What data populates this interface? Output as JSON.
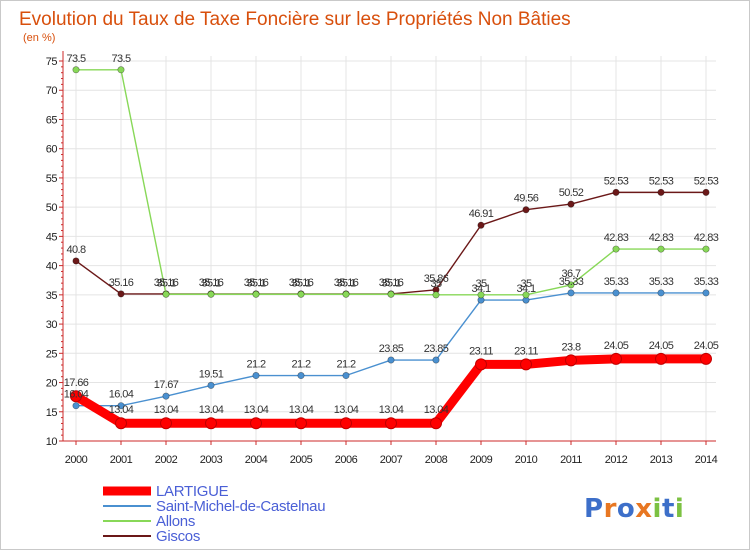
{
  "chart_data": {
    "type": "line",
    "title": "Evolution du Taux de Taxe Foncière sur les Propriétés Non Bâties",
    "ylabel": "(en %)",
    "xlabel": "",
    "ylim": [
      10,
      75
    ],
    "yticks": [
      10,
      15,
      20,
      25,
      30,
      35,
      40,
      45,
      50,
      55,
      60,
      65,
      70,
      75
    ],
    "grid": true,
    "legend_position": "bottom-left",
    "categories": [
      "2000",
      "2001",
      "2002",
      "2003",
      "2004",
      "2005",
      "2006",
      "2007",
      "2008",
      "2009",
      "2010",
      "2011",
      "2012",
      "2013",
      "2014"
    ],
    "series": [
      {
        "name": "LARTIGUE",
        "color": "#ff0000",
        "values": [
          17.66,
          13.04,
          13.04,
          13.04,
          13.04,
          13.04,
          13.04,
          13.04,
          13.04,
          23.11,
          23.11,
          23.8,
          24.05,
          24.05,
          24.05
        ],
        "labels": [
          "17.66",
          "13.04",
          "13.04",
          "13.04",
          "13.04",
          "13.04",
          "13.04",
          "13.04",
          "13.04",
          "23.11",
          "23.11",
          "23.8",
          "24.05",
          "24.05",
          "24.05"
        ]
      },
      {
        "name": "Saint-Michel-de-Castelnau",
        "color": "#4a90d0",
        "values": [
          16.04,
          16.04,
          17.67,
          19.51,
          21.2,
          21.2,
          21.2,
          23.85,
          23.85,
          34.1,
          34.1,
          35.33,
          35.33,
          35.33,
          35.33
        ],
        "labels": [
          "16.04",
          "16.04",
          "17.67",
          "19.51",
          "21.2",
          "21.2",
          "21.2",
          "23.85",
          "23.85",
          "34.1",
          "34.1",
          "35.33",
          "35.33",
          "35.33",
          "35.33"
        ]
      },
      {
        "name": "Allons",
        "color": "#88d858",
        "values": [
          73.5,
          73.5,
          35.1,
          35.1,
          35.1,
          35.1,
          35.1,
          35.1,
          35,
          35,
          35,
          36.7,
          42.83,
          42.83,
          42.83
        ],
        "labels": [
          "73.5",
          "73.5",
          "35.1",
          "35.1",
          "35.1",
          "35.1",
          "35.1",
          "35.1",
          "35",
          "35",
          "35",
          "36.7",
          "42.83",
          "42.83",
          "42.83"
        ]
      },
      {
        "name": "Giscos",
        "color": "#6b1818",
        "values": [
          40.8,
          35.16,
          35.16,
          35.16,
          35.16,
          35.16,
          35.16,
          35.16,
          35.86,
          46.91,
          49.56,
          50.52,
          52.53,
          52.53,
          52.53
        ],
        "labels": [
          "40.8",
          "35.16",
          "35.16",
          "35.16",
          "35.16",
          "35.16",
          "35.16",
          "35.16",
          "35.86",
          "46.91",
          "49.56",
          "50.52",
          "52.53",
          "52.53",
          "52.53"
        ]
      }
    ]
  },
  "logo": {
    "text": "Proxiti"
  }
}
